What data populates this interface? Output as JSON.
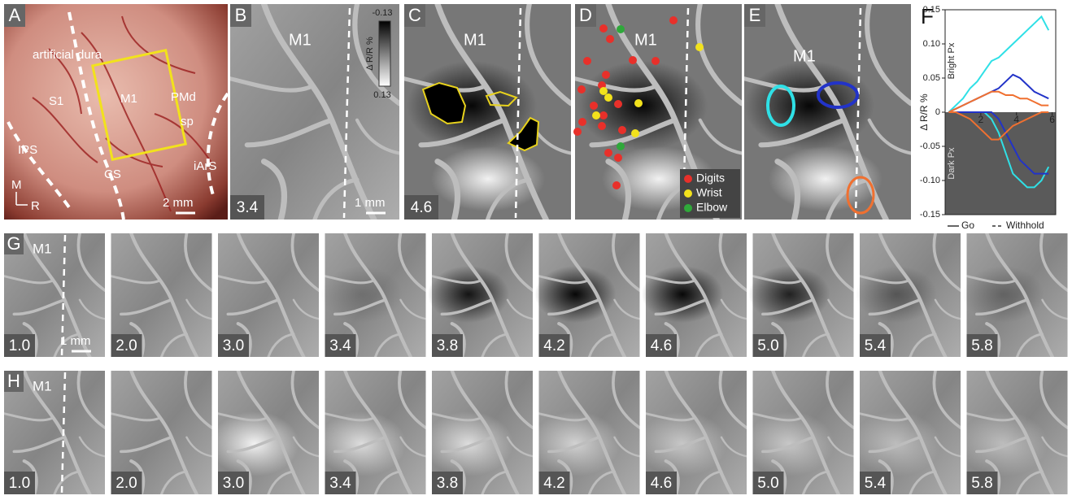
{
  "panel_a": {
    "label": "A",
    "annotations": [
      "artificial dura",
      "S1",
      "M1",
      "PMd",
      "sp",
      "IPS",
      "CS",
      "iArS"
    ],
    "orientation": [
      "M",
      "R"
    ],
    "scale": "2 mm"
  },
  "panel_b": {
    "label": "B",
    "region": "M1",
    "time": "3.4",
    "colorbar": {
      "title": "Δ R/R %",
      "top": "-0.13",
      "bottom": "0.13"
    },
    "scale": "1 mm"
  },
  "panel_c": {
    "label": "C",
    "region": "M1",
    "time": "4.6"
  },
  "panel_d": {
    "label": "D",
    "region": "M1",
    "legend": [
      {
        "label": "Digits",
        "color": "#e8302a"
      },
      {
        "label": "Wrist",
        "color": "#f2e21c"
      },
      {
        "label": "Elbow",
        "color": "#2fa83a"
      }
    ]
  },
  "panel_e": {
    "label": "E",
    "region": "M1"
  },
  "chart_data": {
    "type": "line",
    "label": "F",
    "ylabel": "Δ R/R %",
    "upper_label": "Bright Px",
    "lower_label": "Dark Px",
    "x": [
      0.2,
      0.6,
      1.0,
      1.4,
      1.8,
      2.2,
      2.6,
      3.0,
      3.4,
      3.8,
      4.2,
      4.6,
      5.0,
      5.4,
      5.8
    ],
    "xlim": [
      0,
      6.2
    ],
    "xticks": [
      2,
      4,
      6
    ],
    "ylim": [
      -0.15,
      0.15
    ],
    "yticks": [
      0.15,
      {
        "value": 0.1,
        "label": "0.10"
      },
      0.05,
      0,
      -0.05,
      {
        "value": -0.1,
        "label": "-0.10"
      },
      -0.15
    ],
    "series": [
      {
        "color": "#2fe0e6",
        "values": [
          0,
          0.01,
          0.02,
          0.035,
          0.045,
          0.06,
          0.075,
          0.08,
          0.09,
          0.1,
          0.11,
          0.12,
          0.13,
          0.14,
          0.12
        ]
      },
      {
        "color": "#2fe0e6",
        "values": [
          0,
          0,
          0,
          0,
          0,
          0,
          -0.01,
          -0.03,
          -0.06,
          -0.09,
          -0.1,
          -0.11,
          -0.11,
          -0.1,
          -0.08
        ]
      },
      {
        "color": "#2233c8",
        "values": [
          0,
          0.005,
          0.01,
          0.015,
          0.02,
          0.025,
          0.03,
          0.035,
          0.045,
          0.055,
          0.05,
          0.04,
          0.03,
          0.025,
          0.02
        ]
      },
      {
        "color": "#2233c8",
        "values": [
          0,
          0,
          0,
          0,
          0,
          0,
          0,
          -0.01,
          -0.03,
          -0.05,
          -0.07,
          -0.08,
          -0.09,
          -0.09,
          -0.09
        ]
      },
      {
        "color": "#f07030",
        "values": [
          0,
          0.005,
          0.01,
          0.015,
          0.02,
          0.025,
          0.03,
          0.03,
          0.025,
          0.025,
          0.02,
          0.02,
          0.015,
          0.01,
          0.01
        ]
      },
      {
        "color": "#f07030",
        "values": [
          0,
          0,
          -0.005,
          -0.01,
          -0.02,
          -0.03,
          -0.04,
          -0.04,
          -0.03,
          -0.02,
          -0.015,
          -0.01,
          -0.005,
          0,
          0
        ]
      }
    ],
    "legend": [
      {
        "label": "Go",
        "style": "solid"
      },
      {
        "label": "Withhold",
        "style": "dashed"
      }
    ]
  },
  "panel_g": {
    "label": "G",
    "region": "M1",
    "scale": "1 mm",
    "times": [
      "1.0",
      "2.0",
      "3.0",
      "3.4",
      "3.8",
      "4.2",
      "4.6",
      "5.0",
      "5.4",
      "5.8"
    ]
  },
  "panel_h": {
    "label": "H",
    "region": "M1",
    "times": [
      "1.0",
      "2.0",
      "3.0",
      "3.4",
      "3.8",
      "4.2",
      "4.6",
      "5.0",
      "5.4",
      "5.8"
    ]
  }
}
